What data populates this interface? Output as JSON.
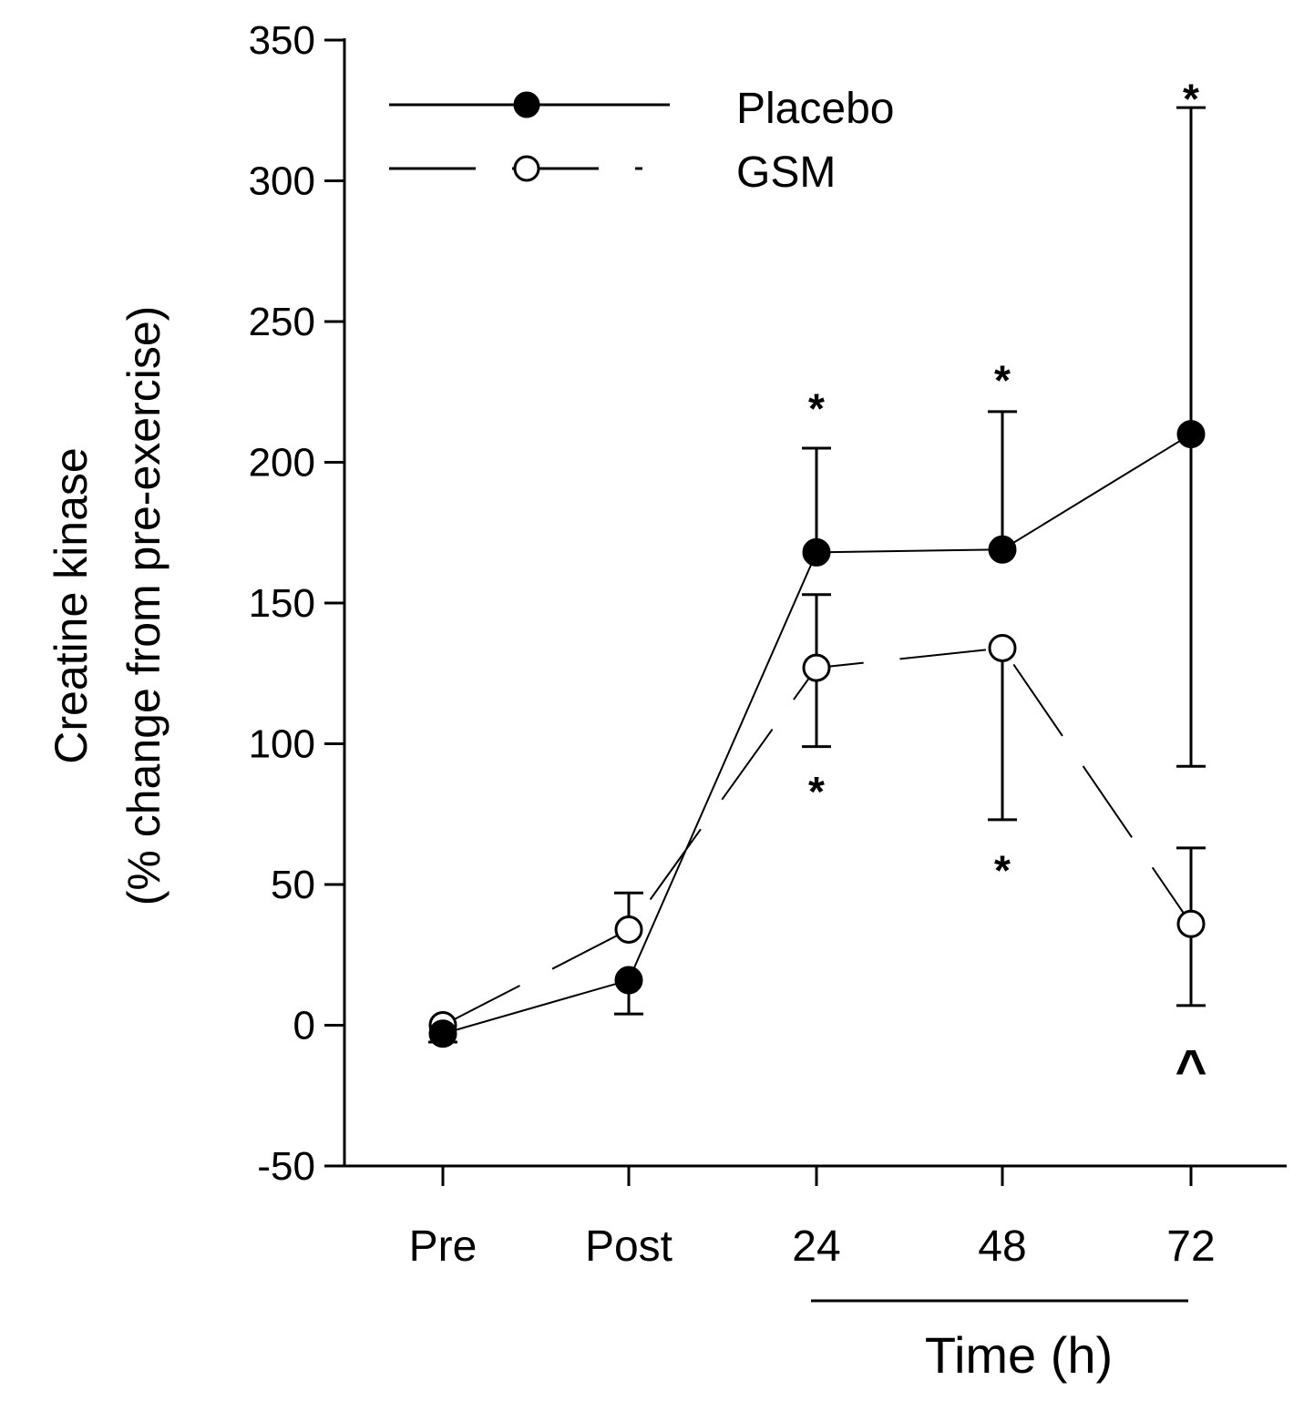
{
  "chart_data": {
    "type": "line",
    "title": "",
    "categories": [
      "Pre",
      "Post",
      "24",
      "48",
      "72"
    ],
    "xlabel": "Time (h)",
    "xlabel_group_note": "bracket spans 24–72",
    "ylabel_lines": [
      "Creatine kinase",
      "(% change from pre-exercise)"
    ],
    "ylim": [
      -50,
      350
    ],
    "yticks": [
      -50,
      0,
      50,
      100,
      150,
      200,
      250,
      300,
      350
    ],
    "legend_position": "top-left",
    "series": [
      {
        "name": "Placebo",
        "marker": "filled-circle",
        "line_style": "solid",
        "values": [
          -3,
          16,
          168,
          169,
          210
        ],
        "error_plus": [
          0,
          0,
          37,
          49,
          116
        ],
        "error_minus": [
          3,
          12,
          0,
          0,
          118
        ]
      },
      {
        "name": "GSM",
        "marker": "open-circle",
        "line_style": "dashed",
        "values": [
          0,
          34,
          127,
          134,
          36
        ],
        "error_plus": [
          0,
          13,
          26,
          0,
          27
        ],
        "error_minus": [
          0,
          0,
          28,
          61,
          29
        ]
      }
    ],
    "annotations": [
      {
        "category": "24",
        "value": 222,
        "text": "*"
      },
      {
        "category": "48",
        "value": 232,
        "text": "*"
      },
      {
        "category": "72",
        "value": 332,
        "text": "*"
      },
      {
        "category": "24",
        "value": 86,
        "text": "*"
      },
      {
        "category": "48",
        "value": 58,
        "text": "*"
      },
      {
        "category": "72",
        "value": -11,
        "text": "^"
      }
    ]
  }
}
